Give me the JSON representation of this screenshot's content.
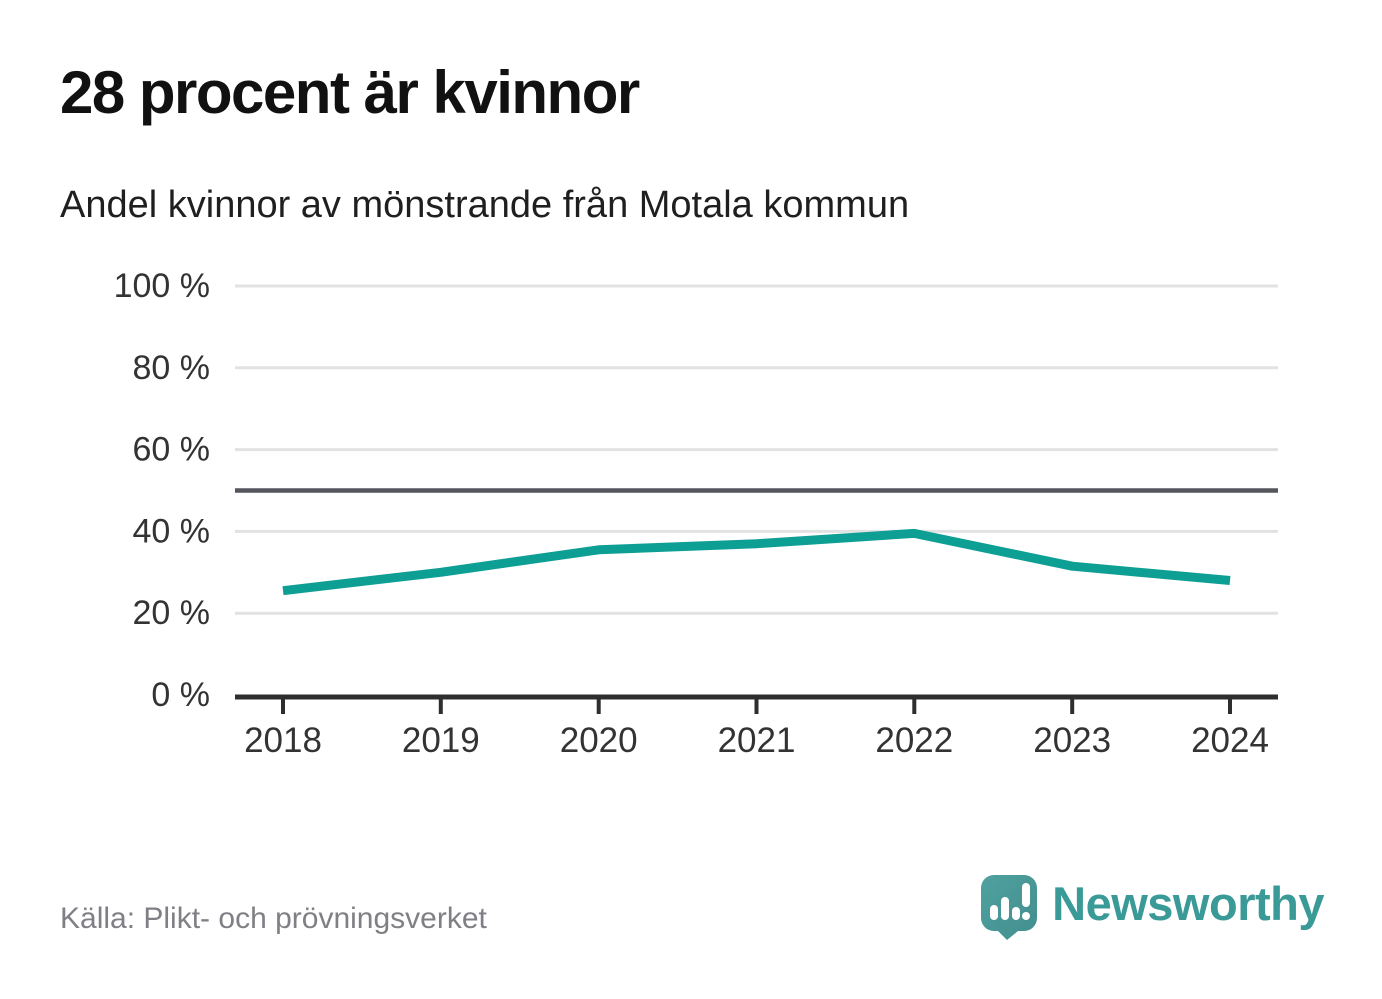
{
  "chart_data": {
    "type": "line",
    "title": "28 procent är kvinnor",
    "subtitle": "Andel kvinnor av mönstrande från Motala kommun",
    "x": [
      "2018",
      "2019",
      "2020",
      "2021",
      "2022",
      "2023",
      "2024"
    ],
    "series": [
      {
        "name": "Andel kvinnor",
        "values": [
          25.5,
          30,
          35.5,
          37,
          39.5,
          31.5,
          28
        ]
      }
    ],
    "ylim": [
      0,
      100
    ],
    "yticks": [
      0,
      20,
      40,
      60,
      80,
      100
    ],
    "ytick_labels": [
      "0 %",
      "20 %",
      "40 %",
      "60 %",
      "80 %",
      "100 %"
    ],
    "reference_line": {
      "value": 50,
      "color": "#55555e"
    },
    "grid": true,
    "legend": "none",
    "colors": {
      "line": "#0d9e94",
      "grid": "#e2e2e2",
      "axis": "#2e2e2e",
      "tick_text": "#333333"
    }
  },
  "footer": {
    "source": "Källa: Plikt- och prövningsverket",
    "brand": "Newsworthy",
    "brand_color": "#3a9a97",
    "logo_color": "#4a9b99"
  }
}
